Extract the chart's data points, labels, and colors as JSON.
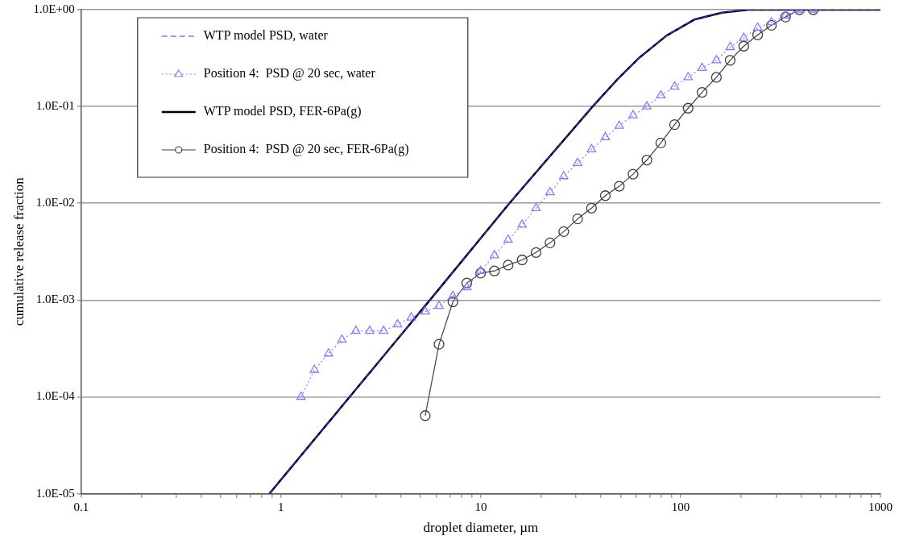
{
  "chart_data": {
    "type": "line",
    "xlabel": "droplet diameter, µm",
    "ylabel": "cumulative release fraction",
    "log": "xy",
    "grid": "y",
    "legend": "top left",
    "xlim": [
      0.1,
      1000
    ],
    "xticks": [
      0.1,
      {
        "value": 0.2,
        "label": null
      },
      {
        "value": 0.3,
        "label": null
      },
      {
        "value": 0.4,
        "label": null
      },
      {
        "value": 0.5,
        "label": null
      },
      {
        "value": 0.6,
        "label": null
      },
      {
        "value": 0.7,
        "label": null
      },
      {
        "value": 0.8,
        "label": null
      },
      {
        "value": 0.9,
        "label": null
      },
      1,
      {
        "value": 2,
        "label": null
      },
      {
        "value": 3,
        "label": null
      },
      {
        "value": 4,
        "label": null
      },
      {
        "value": 5,
        "label": null
      },
      {
        "value": 6,
        "label": null
      },
      {
        "value": 7,
        "label": null
      },
      {
        "value": 8,
        "label": null
      },
      {
        "value": 9,
        "label": null
      },
      10,
      {
        "value": 20,
        "label": null
      },
      {
        "value": 30,
        "label": null
      },
      {
        "value": 40,
        "label": null
      },
      {
        "value": 50,
        "label": null
      },
      {
        "value": 60,
        "label": null
      },
      {
        "value": 70,
        "label": null
      },
      {
        "value": 80,
        "label": null
      },
      {
        "value": 90,
        "label": null
      },
      100,
      {
        "value": 200,
        "label": null
      },
      {
        "value": 300,
        "label": null
      },
      {
        "value": 400,
        "label": null
      },
      {
        "value": 500,
        "label": null
      },
      {
        "value": 600,
        "label": null
      },
      {
        "value": 700,
        "label": null
      },
      {
        "value": 800,
        "label": null
      },
      {
        "value": 900,
        "label": null
      },
      1000
    ],
    "ylim": [
      1e-05,
      1
    ],
    "yticks": [
      {
        "value": 1e-05,
        "label": "1.0E-05"
      },
      {
        "value": 0.0001,
        "label": "1.0E-04"
      },
      {
        "value": 0.001,
        "label": "1.0E-03"
      },
      {
        "value": 0.01,
        "label": "1.0E-02"
      },
      {
        "value": 0.1,
        "label": "1.0E-01"
      },
      {
        "value": 1,
        "label": "1.0E+00"
      }
    ],
    "series": [
      {
        "name": "WTP model PSD, water",
        "color": "#3333ff",
        "marker": "none",
        "line_style": "dashed",
        "x": [
          0.875,
          5.56,
          13.9,
          36.3,
          48.2,
          62.2,
          85.1,
          117,
          161,
          220,
          1000
        ],
        "values": [
          1e-05,
          0.001,
          0.01,
          0.1,
          0.19,
          0.32,
          0.54,
          0.79,
          0.93,
          1.0,
          1.0
        ]
      },
      {
        "name": "Position 4:  PSD @ 20 sec, water",
        "color": "#8080ff",
        "marker": "triangle",
        "line_style": "dotted",
        "x": [
          1.26,
          1.47,
          1.73,
          2.02,
          2.37,
          2.78,
          3.26,
          3.83,
          4.49,
          5.27,
          6.18,
          7.25,
          8.51,
          9.98,
          11.7,
          13.7,
          16.1,
          18.9,
          22.2,
          26.0,
          30.5,
          35.8,
          42.0,
          49.3,
          57.8,
          67.8,
          79.6,
          93.3,
          109,
          128,
          151,
          177,
          207,
          243,
          285,
          335,
          393,
          461
        ],
        "values": [
          0.0001,
          0.00019,
          0.00028,
          0.00039,
          0.00048,
          0.00048,
          0.00048,
          0.00056,
          0.00066,
          0.00076,
          0.00087,
          0.0011,
          0.00135,
          0.002,
          0.0029,
          0.0042,
          0.006,
          0.0089,
          0.013,
          0.019,
          0.026,
          0.036,
          0.048,
          0.063,
          0.081,
          0.1,
          0.13,
          0.16,
          0.2,
          0.25,
          0.3,
          0.41,
          0.51,
          0.65,
          0.74,
          0.87,
          1.0,
          1.0
        ]
      },
      {
        "name": "WTP model PSD, FER-6Pa(g)",
        "color": "#000000",
        "marker": "none",
        "line_style": "solid",
        "x": [
          0.875,
          5.56,
          13.9,
          36.3,
          48.2,
          62.2,
          85.1,
          117,
          161,
          220,
          1000
        ],
        "values": [
          1e-05,
          0.001,
          0.01,
          0.1,
          0.19,
          0.32,
          0.54,
          0.79,
          0.93,
          1.0,
          1.0
        ]
      },
      {
        "name": "Position 4:  PSD @ 20 sec, FER-6Pa(g)",
        "color": "#404040",
        "marker": "circle",
        "line_style": "solid",
        "x": [
          5.27,
          6.18,
          7.25,
          8.51,
          9.98,
          11.7,
          13.7,
          16.1,
          18.9,
          22.2,
          26.0,
          30.5,
          35.8,
          42.0,
          49.3,
          57.8,
          67.8,
          79.6,
          93.3,
          109,
          128,
          151,
          177,
          207,
          243,
          285,
          335,
          393,
          461
        ],
        "values": [
          6.4e-05,
          0.00035,
          0.00096,
          0.0015,
          0.0019,
          0.002,
          0.0023,
          0.0026,
          0.0031,
          0.0039,
          0.0051,
          0.0069,
          0.0089,
          0.012,
          0.015,
          0.02,
          0.028,
          0.042,
          0.065,
          0.096,
          0.14,
          0.2,
          0.3,
          0.42,
          0.55,
          0.69,
          0.84,
          1.0,
          1.0
        ]
      }
    ]
  }
}
